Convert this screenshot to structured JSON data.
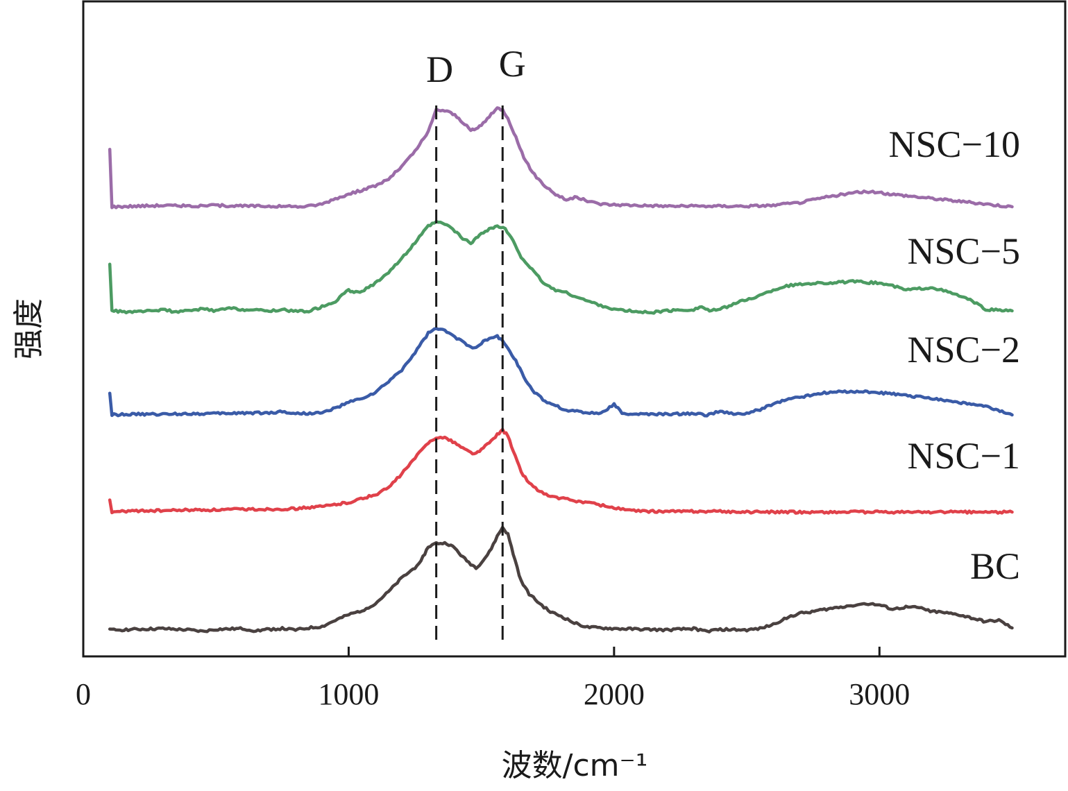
{
  "chart_data": {
    "type": "line",
    "title": "",
    "xlabel": "波数/cm⁻¹",
    "ylabel": "强度",
    "xlim": [
      0,
      3700
    ],
    "y_ticks_shown": false,
    "x_ticks": [
      0,
      1000,
      2000,
      3000
    ],
    "x_tick_labels": [
      "0",
      "1000",
      "2000",
      "3000"
    ],
    "grid": false,
    "offset_stacked": true,
    "peak_markers": [
      {
        "label": "D",
        "x": 1330
      },
      {
        "label": "G",
        "x": 1580
      }
    ],
    "series": [
      {
        "name": "BC",
        "color": "#4a4140",
        "offset": 0,
        "points": [
          [
            100,
            0
          ],
          [
            200,
            1
          ],
          [
            300,
            2
          ],
          [
            400,
            0
          ],
          [
            450,
            -2
          ],
          [
            500,
            1
          ],
          [
            600,
            2
          ],
          [
            650,
            -1
          ],
          [
            700,
            1
          ],
          [
            750,
            2
          ],
          [
            800,
            0
          ],
          [
            850,
            3
          ],
          [
            900,
            5
          ],
          [
            950,
            14
          ],
          [
            1000,
            22
          ],
          [
            1050,
            28
          ],
          [
            1100,
            38
          ],
          [
            1150,
            55
          ],
          [
            1200,
            75
          ],
          [
            1250,
            90
          ],
          [
            1280,
            105
          ],
          [
            1300,
            120
          ],
          [
            1330,
            125
          ],
          [
            1370,
            125
          ],
          [
            1400,
            118
          ],
          [
            1430,
            105
          ],
          [
            1460,
            95
          ],
          [
            1480,
            90
          ],
          [
            1500,
            97
          ],
          [
            1530,
            112
          ],
          [
            1560,
            135
          ],
          [
            1580,
            148
          ],
          [
            1600,
            138
          ],
          [
            1620,
            110
          ],
          [
            1650,
            70
          ],
          [
            1680,
            52
          ],
          [
            1720,
            38
          ],
          [
            1760,
            26
          ],
          [
            1800,
            20
          ],
          [
            1850,
            10
          ],
          [
            1900,
            4
          ],
          [
            2000,
            2
          ],
          [
            2100,
            1
          ],
          [
            2200,
            0
          ],
          [
            2300,
            2
          ],
          [
            2350,
            -2
          ],
          [
            2400,
            1
          ],
          [
            2500,
            0
          ],
          [
            2550,
            2
          ],
          [
            2600,
            8
          ],
          [
            2650,
            18
          ],
          [
            2700,
            24
          ],
          [
            2800,
            30
          ],
          [
            2900,
            36
          ],
          [
            2950,
            38
          ],
          [
            3000,
            36
          ],
          [
            3050,
            30
          ],
          [
            3100,
            33
          ],
          [
            3150,
            32
          ],
          [
            3200,
            27
          ],
          [
            3300,
            22
          ],
          [
            3400,
            12
          ],
          [
            3450,
            14
          ],
          [
            3500,
            3
          ]
        ]
      },
      {
        "name": "NSC-1",
        "color": "#e0414a",
        "offset": 170,
        "points": [
          [
            100,
            18
          ],
          [
            108,
            0
          ],
          [
            200,
            2
          ],
          [
            300,
            2
          ],
          [
            400,
            3
          ],
          [
            500,
            3
          ],
          [
            600,
            4
          ],
          [
            700,
            4
          ],
          [
            800,
            5
          ],
          [
            900,
            8
          ],
          [
            1000,
            14
          ],
          [
            1100,
            25
          ],
          [
            1150,
            35
          ],
          [
            1200,
            55
          ],
          [
            1250,
            78
          ],
          [
            1300,
            100
          ],
          [
            1330,
            108
          ],
          [
            1370,
            106
          ],
          [
            1400,
            100
          ],
          [
            1430,
            92
          ],
          [
            1460,
            86
          ],
          [
            1480,
            84
          ],
          [
            1500,
            90
          ],
          [
            1530,
            100
          ],
          [
            1560,
            112
          ],
          [
            1580,
            118
          ],
          [
            1600,
            110
          ],
          [
            1620,
            88
          ],
          [
            1650,
            58
          ],
          [
            1680,
            42
          ],
          [
            1720,
            30
          ],
          [
            1760,
            22
          ],
          [
            1800,
            20
          ],
          [
            1850,
            16
          ],
          [
            1900,
            14
          ],
          [
            1950,
            10
          ],
          [
            2000,
            6
          ],
          [
            2050,
            3
          ],
          [
            2100,
            1
          ],
          [
            2200,
            1
          ],
          [
            2300,
            1
          ],
          [
            2400,
            1
          ],
          [
            2500,
            0
          ],
          [
            2600,
            0
          ],
          [
            2700,
            0
          ],
          [
            2800,
            0
          ],
          [
            2900,
            0
          ],
          [
            3000,
            0
          ],
          [
            3100,
            0
          ],
          [
            3200,
            0
          ],
          [
            3300,
            0
          ],
          [
            3400,
            0
          ],
          [
            3500,
            0
          ]
        ]
      },
      {
        "name": "NSC-2",
        "color": "#3a5ba7",
        "offset": 310,
        "points": [
          [
            100,
            30
          ],
          [
            108,
            0
          ],
          [
            200,
            1
          ],
          [
            300,
            1
          ],
          [
            400,
            2
          ],
          [
            500,
            2
          ],
          [
            600,
            3
          ],
          [
            700,
            3
          ],
          [
            750,
            5
          ],
          [
            800,
            2
          ],
          [
            900,
            3
          ],
          [
            950,
            10
          ],
          [
            1000,
            18
          ],
          [
            1050,
            24
          ],
          [
            1100,
            32
          ],
          [
            1150,
            48
          ],
          [
            1200,
            65
          ],
          [
            1250,
            90
          ],
          [
            1300,
            118
          ],
          [
            1330,
            125
          ],
          [
            1370,
            120
          ],
          [
            1400,
            112
          ],
          [
            1430,
            106
          ],
          [
            1460,
            98
          ],
          [
            1480,
            98
          ],
          [
            1500,
            104
          ],
          [
            1530,
            110
          ],
          [
            1560,
            113
          ],
          [
            1580,
            108
          ],
          [
            1600,
            95
          ],
          [
            1630,
            78
          ],
          [
            1660,
            55
          ],
          [
            1700,
            32
          ],
          [
            1740,
            20
          ],
          [
            1780,
            14
          ],
          [
            1820,
            6
          ],
          [
            1860,
            6
          ],
          [
            1900,
            3
          ],
          [
            1950,
            2
          ],
          [
            2000,
            16
          ],
          [
            2030,
            2
          ],
          [
            2100,
            1
          ],
          [
            2200,
            1
          ],
          [
            2300,
            2
          ],
          [
            2350,
            0
          ],
          [
            2400,
            5
          ],
          [
            2450,
            1
          ],
          [
            2500,
            2
          ],
          [
            2550,
            8
          ],
          [
            2600,
            16
          ],
          [
            2650,
            22
          ],
          [
            2700,
            26
          ],
          [
            2800,
            32
          ],
          [
            2900,
            34
          ],
          [
            3000,
            32
          ],
          [
            3100,
            28
          ],
          [
            3200,
            24
          ],
          [
            3300,
            18
          ],
          [
            3400,
            12
          ],
          [
            3500,
            0
          ]
        ]
      },
      {
        "name": "NSC-5",
        "color": "#4c9b62",
        "offset": 460,
        "points": [
          [
            100,
            66
          ],
          [
            108,
            0
          ],
          [
            200,
            -2
          ],
          [
            250,
            0
          ],
          [
            300,
            2
          ],
          [
            350,
            -2
          ],
          [
            400,
            0
          ],
          [
            450,
            3
          ],
          [
            500,
            0
          ],
          [
            550,
            4
          ],
          [
            600,
            2
          ],
          [
            700,
            0
          ],
          [
            750,
            2
          ],
          [
            800,
            -1
          ],
          [
            850,
            0
          ],
          [
            900,
            6
          ],
          [
            950,
            14
          ],
          [
            1000,
            30
          ],
          [
            1020,
            26
          ],
          [
            1050,
            28
          ],
          [
            1100,
            40
          ],
          [
            1150,
            56
          ],
          [
            1200,
            75
          ],
          [
            1250,
            98
          ],
          [
            1300,
            122
          ],
          [
            1330,
            128
          ],
          [
            1370,
            124
          ],
          [
            1400,
            115
          ],
          [
            1430,
            104
          ],
          [
            1460,
            98
          ],
          [
            1480,
            104
          ],
          [
            1500,
            112
          ],
          [
            1530,
            118
          ],
          [
            1560,
            122
          ],
          [
            1590,
            118
          ],
          [
            1620,
            100
          ],
          [
            1650,
            78
          ],
          [
            1700,
            55
          ],
          [
            1740,
            38
          ],
          [
            1780,
            30
          ],
          [
            1820,
            26
          ],
          [
            1860,
            20
          ],
          [
            1900,
            14
          ],
          [
            1950,
            8
          ],
          [
            2000,
            2
          ],
          [
            2050,
            0
          ],
          [
            2100,
            -2
          ],
          [
            2150,
            -2
          ],
          [
            2200,
            0
          ],
          [
            2300,
            2
          ],
          [
            2330,
            6
          ],
          [
            2360,
            0
          ],
          [
            2400,
            2
          ],
          [
            2450,
            10
          ],
          [
            2500,
            16
          ],
          [
            2550,
            22
          ],
          [
            2600,
            30
          ],
          [
            2650,
            36
          ],
          [
            2700,
            38
          ],
          [
            2750,
            40
          ],
          [
            2800,
            40
          ],
          [
            2900,
            42
          ],
          [
            3000,
            40
          ],
          [
            3050,
            36
          ],
          [
            3100,
            30
          ],
          [
            3150,
            32
          ],
          [
            3200,
            34
          ],
          [
            3250,
            28
          ],
          [
            3300,
            22
          ],
          [
            3350,
            14
          ],
          [
            3400,
            2
          ],
          [
            3500,
            0
          ]
        ]
      },
      {
        "name": "NSC-10",
        "color": "#9b6ca8",
        "offset": 610,
        "points": [
          [
            100,
            82
          ],
          [
            108,
            0
          ],
          [
            200,
            1
          ],
          [
            300,
            2
          ],
          [
            400,
            1
          ],
          [
            450,
            1
          ],
          [
            500,
            2
          ],
          [
            600,
            1
          ],
          [
            700,
            1
          ],
          [
            800,
            0
          ],
          [
            850,
            1
          ],
          [
            900,
            4
          ],
          [
            950,
            12
          ],
          [
            1000,
            18
          ],
          [
            1050,
            24
          ],
          [
            1100,
            30
          ],
          [
            1150,
            40
          ],
          [
            1200,
            58
          ],
          [
            1250,
            80
          ],
          [
            1300,
            108
          ],
          [
            1330,
            140
          ],
          [
            1370,
            138
          ],
          [
            1400,
            132
          ],
          [
            1430,
            122
          ],
          [
            1460,
            110
          ],
          [
            1480,
            112
          ],
          [
            1500,
            118
          ],
          [
            1530,
            130
          ],
          [
            1560,
            142
          ],
          [
            1580,
            140
          ],
          [
            1600,
            128
          ],
          [
            1630,
            100
          ],
          [
            1660,
            70
          ],
          [
            1700,
            46
          ],
          [
            1740,
            30
          ],
          [
            1780,
            18
          ],
          [
            1820,
            10
          ],
          [
            1860,
            14
          ],
          [
            1900,
            8
          ],
          [
            1950,
            4
          ],
          [
            2000,
            3
          ],
          [
            2100,
            2
          ],
          [
            2200,
            1
          ],
          [
            2300,
            1
          ],
          [
            2400,
            1
          ],
          [
            2500,
            1
          ],
          [
            2600,
            2
          ],
          [
            2700,
            6
          ],
          [
            2750,
            10
          ],
          [
            2800,
            14
          ],
          [
            2900,
            20
          ],
          [
            2950,
            22
          ],
          [
            3000,
            20
          ],
          [
            3100,
            16
          ],
          [
            3200,
            12
          ],
          [
            3300,
            8
          ],
          [
            3400,
            4
          ],
          [
            3500,
            0
          ]
        ]
      }
    ]
  }
}
